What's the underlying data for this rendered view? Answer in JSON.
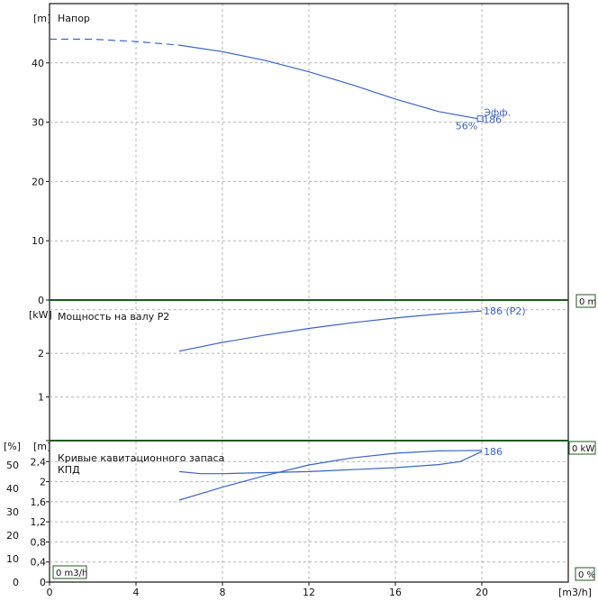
{
  "chart_data": [
    {
      "type": "line",
      "title": "Напор",
      "ylabel": "[m]",
      "xlim": [
        0,
        24
      ],
      "ylim": [
        0,
        50
      ],
      "grid": true,
      "x_ticks": [
        "0",
        "4",
        "8",
        "12",
        "16",
        "20"
      ],
      "y_ticks": [
        "0",
        "10",
        "20",
        "30",
        "40"
      ],
      "series": [
        {
          "name": "186",
          "x": [
            6,
            8,
            10,
            12,
            14,
            16,
            18,
            19.8
          ],
          "y": [
            43,
            41.9,
            40.4,
            38.5,
            36.3,
            33.9,
            31.8,
            30.6
          ]
        },
        {
          "x": [
            0,
            2,
            4,
            6
          ],
          "y": [
            44,
            44,
            43.6,
            43
          ]
        }
      ],
      "annotations": [
        "Эфф.",
        "56%",
        "186"
      ],
      "end_badge": "0 m"
    },
    {
      "type": "line",
      "title": "Мощность на валу P2",
      "ylabel": "[kW]",
      "xlim": [
        0,
        24
      ],
      "ylim": [
        0,
        3.2
      ],
      "grid": true,
      "y_ticks": [
        "0",
        "1",
        "2"
      ],
      "series": [
        {
          "name": "186 (P2)",
          "x": [
            6,
            8,
            10,
            12,
            14,
            16,
            18,
            20
          ],
          "y": [
            2.05,
            2.25,
            2.42,
            2.57,
            2.7,
            2.81,
            2.9,
            2.97
          ]
        }
      ],
      "end_badge": "0 kW"
    },
    {
      "type": "line",
      "title": "Кривые кавитационного запаса",
      "subtitle": "КПД",
      "ylabel_left": "[%]",
      "ylabel_right": "[m]",
      "xlabel": "[m3/h]",
      "xlim": [
        0,
        24
      ],
      "ylim_pct": [
        0,
        60
      ],
      "ylim_m": [
        0,
        2.8
      ],
      "grid": true,
      "y_ticks_pct": [
        "0",
        "10",
        "20",
        "30",
        "40",
        "50"
      ],
      "y_ticks_m": [
        "0",
        "0,4",
        "0,8",
        "1,2",
        "1,6",
        "2",
        "2,4"
      ],
      "series": [
        {
          "name": "КПД",
          "axis": "pct",
          "x": [
            6,
            8,
            10,
            12,
            14,
            16,
            18,
            20
          ],
          "y": [
            35,
            40.5,
            45.5,
            50,
            53,
            55,
            56,
            56.2
          ]
        },
        {
          "name": "186",
          "axis": "m",
          "x": [
            6,
            7,
            8,
            10,
            12,
            14,
            16,
            18,
            19,
            20
          ],
          "y": [
            2.2,
            2.16,
            2.16,
            2.18,
            2.2,
            2.24,
            2.28,
            2.34,
            2.4,
            2.6
          ]
        }
      ],
      "end_badge": "0 %",
      "start_badge": "0 m3/h",
      "extra_badge": "0 kW"
    }
  ]
}
